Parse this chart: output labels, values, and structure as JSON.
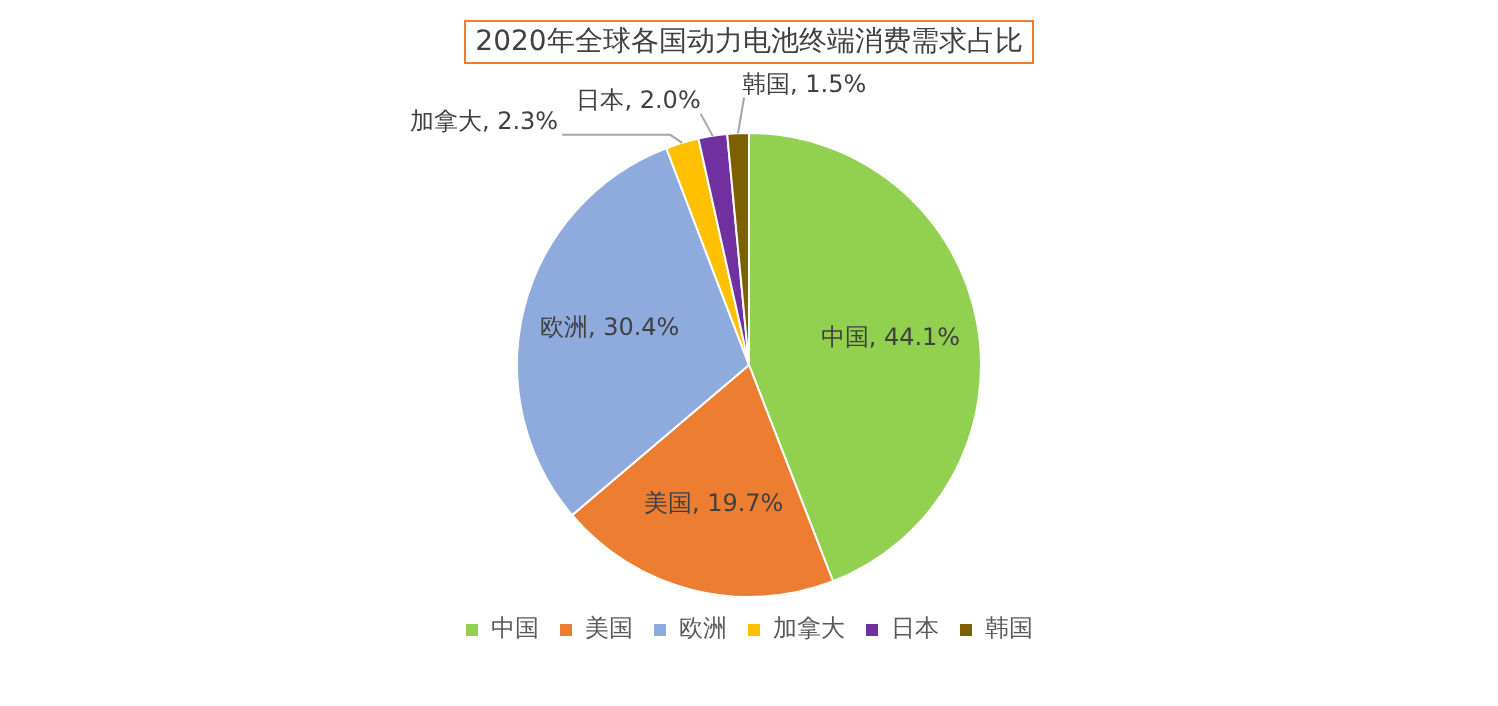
{
  "chart_data": {
    "type": "pie",
    "title": "2020年全球各国动力电池终端消费需求占比",
    "categories": [
      "中国",
      "美国",
      "欧洲",
      "加拿大",
      "日本",
      "韩国"
    ],
    "values": [
      44.1,
      19.7,
      30.4,
      2.3,
      2.0,
      1.5
    ],
    "colors": [
      "#92d050",
      "#ed7d31",
      "#8faadc",
      "#ffc000",
      "#7030a0",
      "#7f6000"
    ],
    "value_labels": [
      "中国, 44.1%",
      "美国, 19.7%",
      "欧洲, 30.4%",
      "加拿大, 2.3%",
      "日本, 2.0%",
      "韩国, 1.5%"
    ],
    "legend": "bottom"
  }
}
